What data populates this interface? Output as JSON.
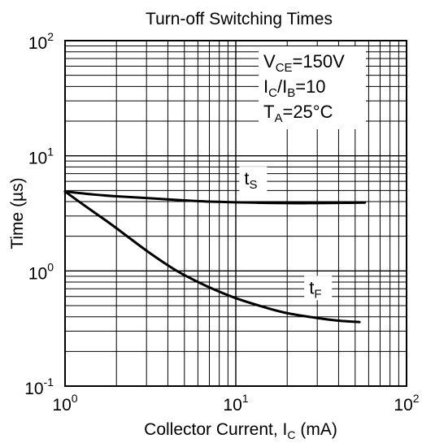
{
  "chart_data": {
    "type": "line",
    "title": "Turn-off Switching Times",
    "xlabel": {
      "main": "Collector Current, I",
      "sub": "C",
      "unit": " (mA)"
    },
    "ylabel": "Time (µs)",
    "x_scale": "log",
    "y_scale": "log",
    "xlim": [
      1,
      100
    ],
    "ylim": [
      0.1,
      100
    ],
    "grid": true,
    "x_ticks": [
      {
        "value": 1,
        "base": "10",
        "exp": "0"
      },
      {
        "value": 10,
        "base": "10",
        "exp": "1"
      },
      {
        "value": 100,
        "base": "10",
        "exp": "2"
      }
    ],
    "y_ticks": [
      {
        "value": 0.1,
        "base": "10",
        "exp": "-1"
      },
      {
        "value": 1,
        "base": "10",
        "exp": "0"
      },
      {
        "value": 10,
        "base": "10",
        "exp": "1"
      },
      {
        "value": 100,
        "base": "10",
        "exp": "2"
      }
    ],
    "conditions": [
      {
        "parts": [
          {
            "t": "V"
          },
          {
            "t": "CE",
            "sub": true
          },
          {
            "t": "=150V"
          }
        ]
      },
      {
        "parts": [
          {
            "t": "I"
          },
          {
            "t": "C",
            "sub": true
          },
          {
            "t": "/I"
          },
          {
            "t": "B",
            "sub": true
          },
          {
            "t": "=10"
          }
        ]
      },
      {
        "parts": [
          {
            "t": "T"
          },
          {
            "t": "A",
            "sub": true
          },
          {
            "t": "=25°C"
          }
        ]
      }
    ],
    "series": [
      {
        "label": {
          "main": "t",
          "sub": "S"
        },
        "label_at": {
          "x": 12.5,
          "y": 6.2
        },
        "x": [
          1,
          1.5,
          2,
          3,
          5,
          7,
          10,
          15,
          20,
          30,
          40,
          57
        ],
        "y": [
          4.9,
          4.6,
          4.45,
          4.3,
          4.1,
          4.0,
          3.95,
          3.9,
          3.88,
          3.88,
          3.9,
          3.92
        ]
      },
      {
        "label": {
          "main": "t",
          "sub": "F"
        },
        "label_at": {
          "x": 30,
          "y": 0.7
        },
        "x": [
          1,
          1.3,
          1.7,
          2,
          3,
          4,
          5,
          7,
          10,
          15,
          20,
          30,
          40,
          53
        ],
        "y": [
          4.9,
          3.7,
          2.8,
          2.35,
          1.5,
          1.12,
          0.92,
          0.72,
          0.58,
          0.48,
          0.43,
          0.39,
          0.37,
          0.36
        ]
      }
    ]
  }
}
